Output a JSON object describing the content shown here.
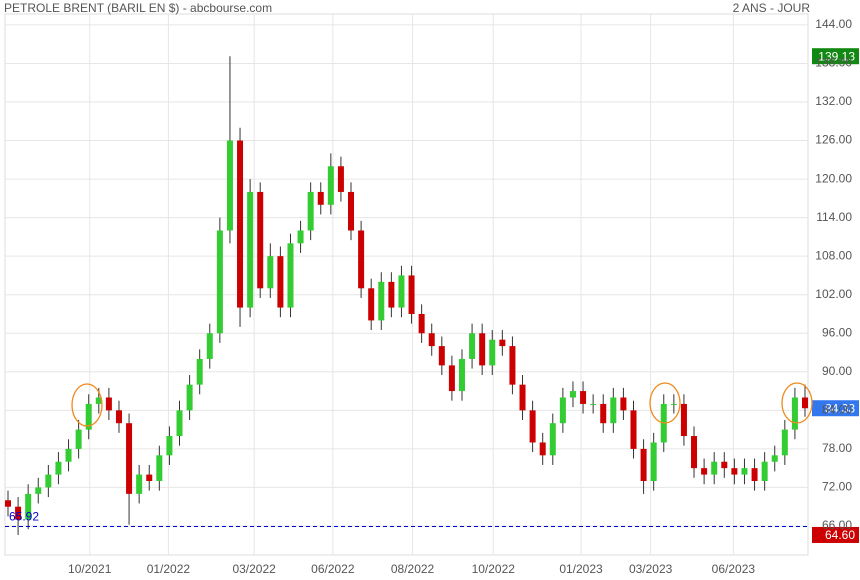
{
  "chart_data": {
    "type": "candlestick",
    "title": "PETROLE BRENT (BARIL EN $) - abcbourse.com",
    "subtitle": "2 ANS - JOUR",
    "categories": [
      null,
      null,
      null,
      null,
      null,
      null,
      null,
      null,
      null,
      null,
      null,
      null,
      null,
      null,
      null,
      null,
      null,
      null,
      null,
      null,
      null,
      null,
      null,
      null,
      null,
      null,
      null,
      null,
      null,
      null,
      null,
      null,
      null,
      null,
      null,
      null,
      null,
      null,
      null,
      null,
      null,
      null,
      null,
      null,
      null,
      null,
      null,
      null,
      null,
      null,
      null,
      null,
      null,
      null,
      null,
      null,
      null,
      null,
      null,
      null,
      null,
      null,
      null,
      null,
      null,
      null,
      null,
      null,
      null,
      null,
      null,
      null,
      null,
      null,
      null,
      null,
      null,
      null,
      null,
      null
    ],
    "open": [
      70,
      69,
      67,
      71,
      72,
      74,
      76,
      78,
      81,
      85,
      86,
      84,
      82,
      71,
      74,
      73,
      77,
      80,
      84,
      88,
      92,
      96,
      112,
      126,
      100,
      118,
      103,
      108,
      100,
      110,
      112,
      118,
      116,
      122,
      118,
      112,
      103,
      98,
      104,
      100,
      105,
      99,
      96,
      94,
      91,
      87,
      92,
      96,
      91,
      95,
      94,
      88,
      84,
      79,
      77,
      82,
      86,
      87,
      85,
      85,
      82,
      86,
      84,
      78,
      73,
      79,
      85,
      85,
      80,
      75,
      74,
      76,
      75,
      74,
      75,
      73,
      76,
      77,
      81,
      86
    ],
    "high": [
      71.5,
      70.5,
      72.5,
      73.5,
      75.5,
      77.5,
      79.5,
      82.5,
      86.5,
      87.5,
      87.5,
      85.5,
      83.5,
      75.5,
      75.5,
      78.5,
      81.5,
      85.5,
      89.5,
      93.5,
      97.5,
      114,
      139.13,
      128,
      120,
      119.5,
      110,
      109.5,
      111.5,
      113.5,
      119.5,
      119.5,
      124,
      123.5,
      119.5,
      113.5,
      104.5,
      105.5,
      105.5,
      106.5,
      106.5,
      100.5,
      97.5,
      95.5,
      92.5,
      93.5,
      97.5,
      97.5,
      96.5,
      96.5,
      95.5,
      89.5,
      85.5,
      80.5,
      83.5,
      87.5,
      88.5,
      88.5,
      86.5,
      86.5,
      87.5,
      87.5,
      85.5,
      79.5,
      80.5,
      86.5,
      86.5,
      86.5,
      81.5,
      76.5,
      77.5,
      77.5,
      76.5,
      76.5,
      76.5,
      77.5,
      78.5,
      82.5,
      87.5,
      88
    ],
    "low": [
      67.5,
      64.6,
      65.5,
      69.5,
      70.5,
      72.5,
      74.5,
      76.5,
      79.5,
      83.5,
      82.5,
      80.5,
      66.2,
      69.5,
      71.5,
      71.5,
      75.5,
      78.5,
      82.5,
      86.5,
      90.5,
      94.5,
      110,
      97,
      98.5,
      101.5,
      101.5,
      98.5,
      98.5,
      108.5,
      110.5,
      114.5,
      114.5,
      116.5,
      110.5,
      101.5,
      96.5,
      96.5,
      98.5,
      98.5,
      97.5,
      94.5,
      92.5,
      89.5,
      85.5,
      85.5,
      90.5,
      89.5,
      89.5,
      92.5,
      86.5,
      82.5,
      77.5,
      75.5,
      75.5,
      80.5,
      84.5,
      83.5,
      83.5,
      80.5,
      80.5,
      82.5,
      76.5,
      71,
      71.5,
      77.5,
      83.5,
      78.5,
      73.5,
      72.5,
      72.5,
      73.5,
      72.5,
      72.5,
      71.5,
      71.5,
      74.5,
      75.5,
      79.5,
      83
    ],
    "close": [
      69,
      67,
      71,
      72,
      74,
      76,
      78,
      81,
      85,
      86,
      84,
      82,
      71,
      74,
      73,
      77,
      80,
      84,
      88,
      92,
      96,
      112,
      126,
      100,
      118,
      103,
      108,
      100,
      110,
      112,
      118,
      116,
      122,
      118,
      112,
      103,
      98,
      104,
      100,
      105,
      99,
      96,
      94,
      91,
      87,
      92,
      96,
      91,
      95,
      94,
      88,
      84,
      79,
      77,
      82,
      86,
      87,
      85,
      85,
      82,
      86,
      84,
      78,
      73,
      79,
      85,
      85,
      80,
      75,
      74,
      76,
      75,
      74,
      75,
      73,
      76,
      77,
      81,
      86,
      84.33
    ],
    "up_color": "#33cc33",
    "down_color": "#cc0000",
    "ylim": [
      62.26,
      145.7
    ],
    "yticks": [
      {
        "value": 66,
        "label": "66.00"
      },
      {
        "value": 72,
        "label": "72.00"
      },
      {
        "value": 78,
        "label": "78.00"
      },
      {
        "value": 84,
        "label": "84.00"
      },
      {
        "value": 90,
        "label": "90.00"
      },
      {
        "value": 96,
        "label": "96.00"
      },
      {
        "value": 102,
        "label": "102.00"
      },
      {
        "value": 108,
        "label": "108.00"
      },
      {
        "value": 114,
        "label": "114.00"
      },
      {
        "value": 120,
        "label": "120.00"
      },
      {
        "value": 126,
        "label": "126.00"
      },
      {
        "value": 132,
        "label": "132.00"
      },
      {
        "value": 138,
        "label": "138.00"
      },
      {
        "value": 144,
        "label": "144.00"
      }
    ],
    "xticks": [
      {
        "value": 8.1,
        "label": "10/2021"
      },
      {
        "value": 15.9,
        "label": "01/2022"
      },
      {
        "value": 24.4,
        "label": "03/2022"
      },
      {
        "value": 32.2,
        "label": "06/2022"
      },
      {
        "value": 40.1,
        "label": "08/2022"
      },
      {
        "value": 48.1,
        "label": "10/2022"
      },
      {
        "value": 56.8,
        "label": "01/2023"
      },
      {
        "value": 63.7,
        "label": "03/2023"
      },
      {
        "value": 71.9,
        "label": "06/2023"
      }
    ],
    "grid": true,
    "price_markers": [
      {
        "value": 139.13,
        "label": "139.13",
        "color": "#118811"
      },
      {
        "value": 84.33,
        "label": "84.33",
        "color": "#3377ee"
      },
      {
        "value": 64.6,
        "label": "64.60",
        "color": "#cc0000"
      }
    ],
    "reference_line": {
      "value": 65.92,
      "label": "65.92",
      "color": "#0000cc"
    }
  }
}
